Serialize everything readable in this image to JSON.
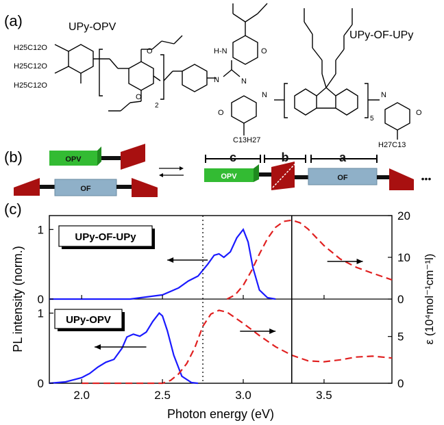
{
  "panel_labels": {
    "a": "(a)",
    "b": "(b)",
    "c": "(c)"
  },
  "panel_a": {
    "name_left": "UPy-OPV",
    "name_right": "UPy-OF-UPy",
    "subscript_left": "2",
    "subscript_right": "5",
    "chains": {
      "r1": "H25C12O",
      "r2": "H25C12O",
      "r3": "H25C12O",
      "c13": "C13H27",
      "c13r": "H27C13"
    },
    "atoms": {
      "O": "O",
      "N": "N",
      "H": "H",
      "HN": "H-N",
      "NH": "N-H"
    }
  },
  "panel_b": {
    "opv": "OPV",
    "of": "OF",
    "dim_c": "c",
    "dim_b": "b",
    "dim_a": "a",
    "ellipsis": "•••"
  },
  "chart_data": [
    {
      "type": "line",
      "panel": "top",
      "legend": "UPy-OF-UPy",
      "xlabel": "Photon energy (eV)",
      "ylabel_left": "PL intensity (norm.)",
      "ylabel_right": "ε (10⁴mol⁻¹cm⁻¹l)",
      "xlim": [
        1.8,
        3.92
      ],
      "ylim_left": [
        0,
        1.2
      ],
      "ylim_right": [
        0,
        20
      ],
      "left_ticks": [
        "0",
        "1"
      ],
      "right_ticks": [
        "0",
        "10",
        "20"
      ],
      "series": [
        {
          "role": "PL",
          "axis": "left",
          "color": "#1a1aff",
          "x": [
            1.8,
            2.3,
            2.5,
            2.6,
            2.66,
            2.72,
            2.78,
            2.82,
            2.85,
            2.88,
            2.92,
            2.96,
            3.0,
            3.03,
            3.06,
            3.1,
            3.15,
            3.2
          ],
          "y": [
            0,
            0,
            0.06,
            0.16,
            0.26,
            0.33,
            0.5,
            0.63,
            0.65,
            0.6,
            0.68,
            0.88,
            1.0,
            0.82,
            0.45,
            0.13,
            0.02,
            0
          ]
        },
        {
          "role": "absorption",
          "axis": "right",
          "color": "#e02020",
          "x": [
            2.9,
            2.95,
            3.0,
            3.05,
            3.1,
            3.15,
            3.2,
            3.25,
            3.3,
            3.35,
            3.4,
            3.5,
            3.6,
            3.7,
            3.8,
            3.92
          ],
          "y": [
            0,
            1.0,
            3.3,
            6.7,
            10.8,
            14.5,
            17.2,
            18.6,
            18.9,
            18.3,
            16.8,
            12.8,
            9.6,
            7.6,
            6.2,
            4.6
          ]
        }
      ]
    },
    {
      "type": "line",
      "panel": "bottom",
      "legend": "UPy-OPV",
      "xlim": [
        1.8,
        3.92
      ],
      "ylim_left": [
        0,
        1.2
      ],
      "ylim_right": [
        0,
        9
      ],
      "left_ticks": [
        "0",
        "1"
      ],
      "right_ticks": [
        "0",
        "5"
      ],
      "x_ticks": [
        "2.0",
        "2.5",
        "3.0",
        "3.5"
      ],
      "series": [
        {
          "role": "PL",
          "axis": "left",
          "color": "#1a1aff",
          "x": [
            1.8,
            1.9,
            1.95,
            2.0,
            2.05,
            2.1,
            2.15,
            2.2,
            2.25,
            2.28,
            2.32,
            2.36,
            2.4,
            2.44,
            2.48,
            2.5,
            2.53,
            2.57,
            2.62,
            2.68,
            2.72
          ],
          "y": [
            0,
            0.02,
            0.05,
            0.08,
            0.14,
            0.23,
            0.3,
            0.34,
            0.5,
            0.66,
            0.7,
            0.67,
            0.73,
            0.88,
            1.0,
            0.96,
            0.75,
            0.4,
            0.1,
            0.01,
            0
          ]
        },
        {
          "role": "absorption",
          "axis": "right",
          "color": "#e02020",
          "x": [
            2.0,
            2.5,
            2.55,
            2.6,
            2.65,
            2.7,
            2.75,
            2.8,
            2.85,
            2.9,
            2.95,
            3.0,
            3.1,
            3.2,
            3.3,
            3.4,
            3.5,
            3.6,
            3.7,
            3.8,
            3.92
          ],
          "y": [
            0,
            0,
            0.3,
            1.0,
            2.1,
            3.8,
            6.1,
            7.4,
            7.8,
            7.6,
            7.0,
            6.4,
            5.1,
            3.9,
            3.0,
            2.4,
            2.3,
            2.5,
            2.8,
            2.9,
            2.7
          ]
        }
      ]
    }
  ]
}
